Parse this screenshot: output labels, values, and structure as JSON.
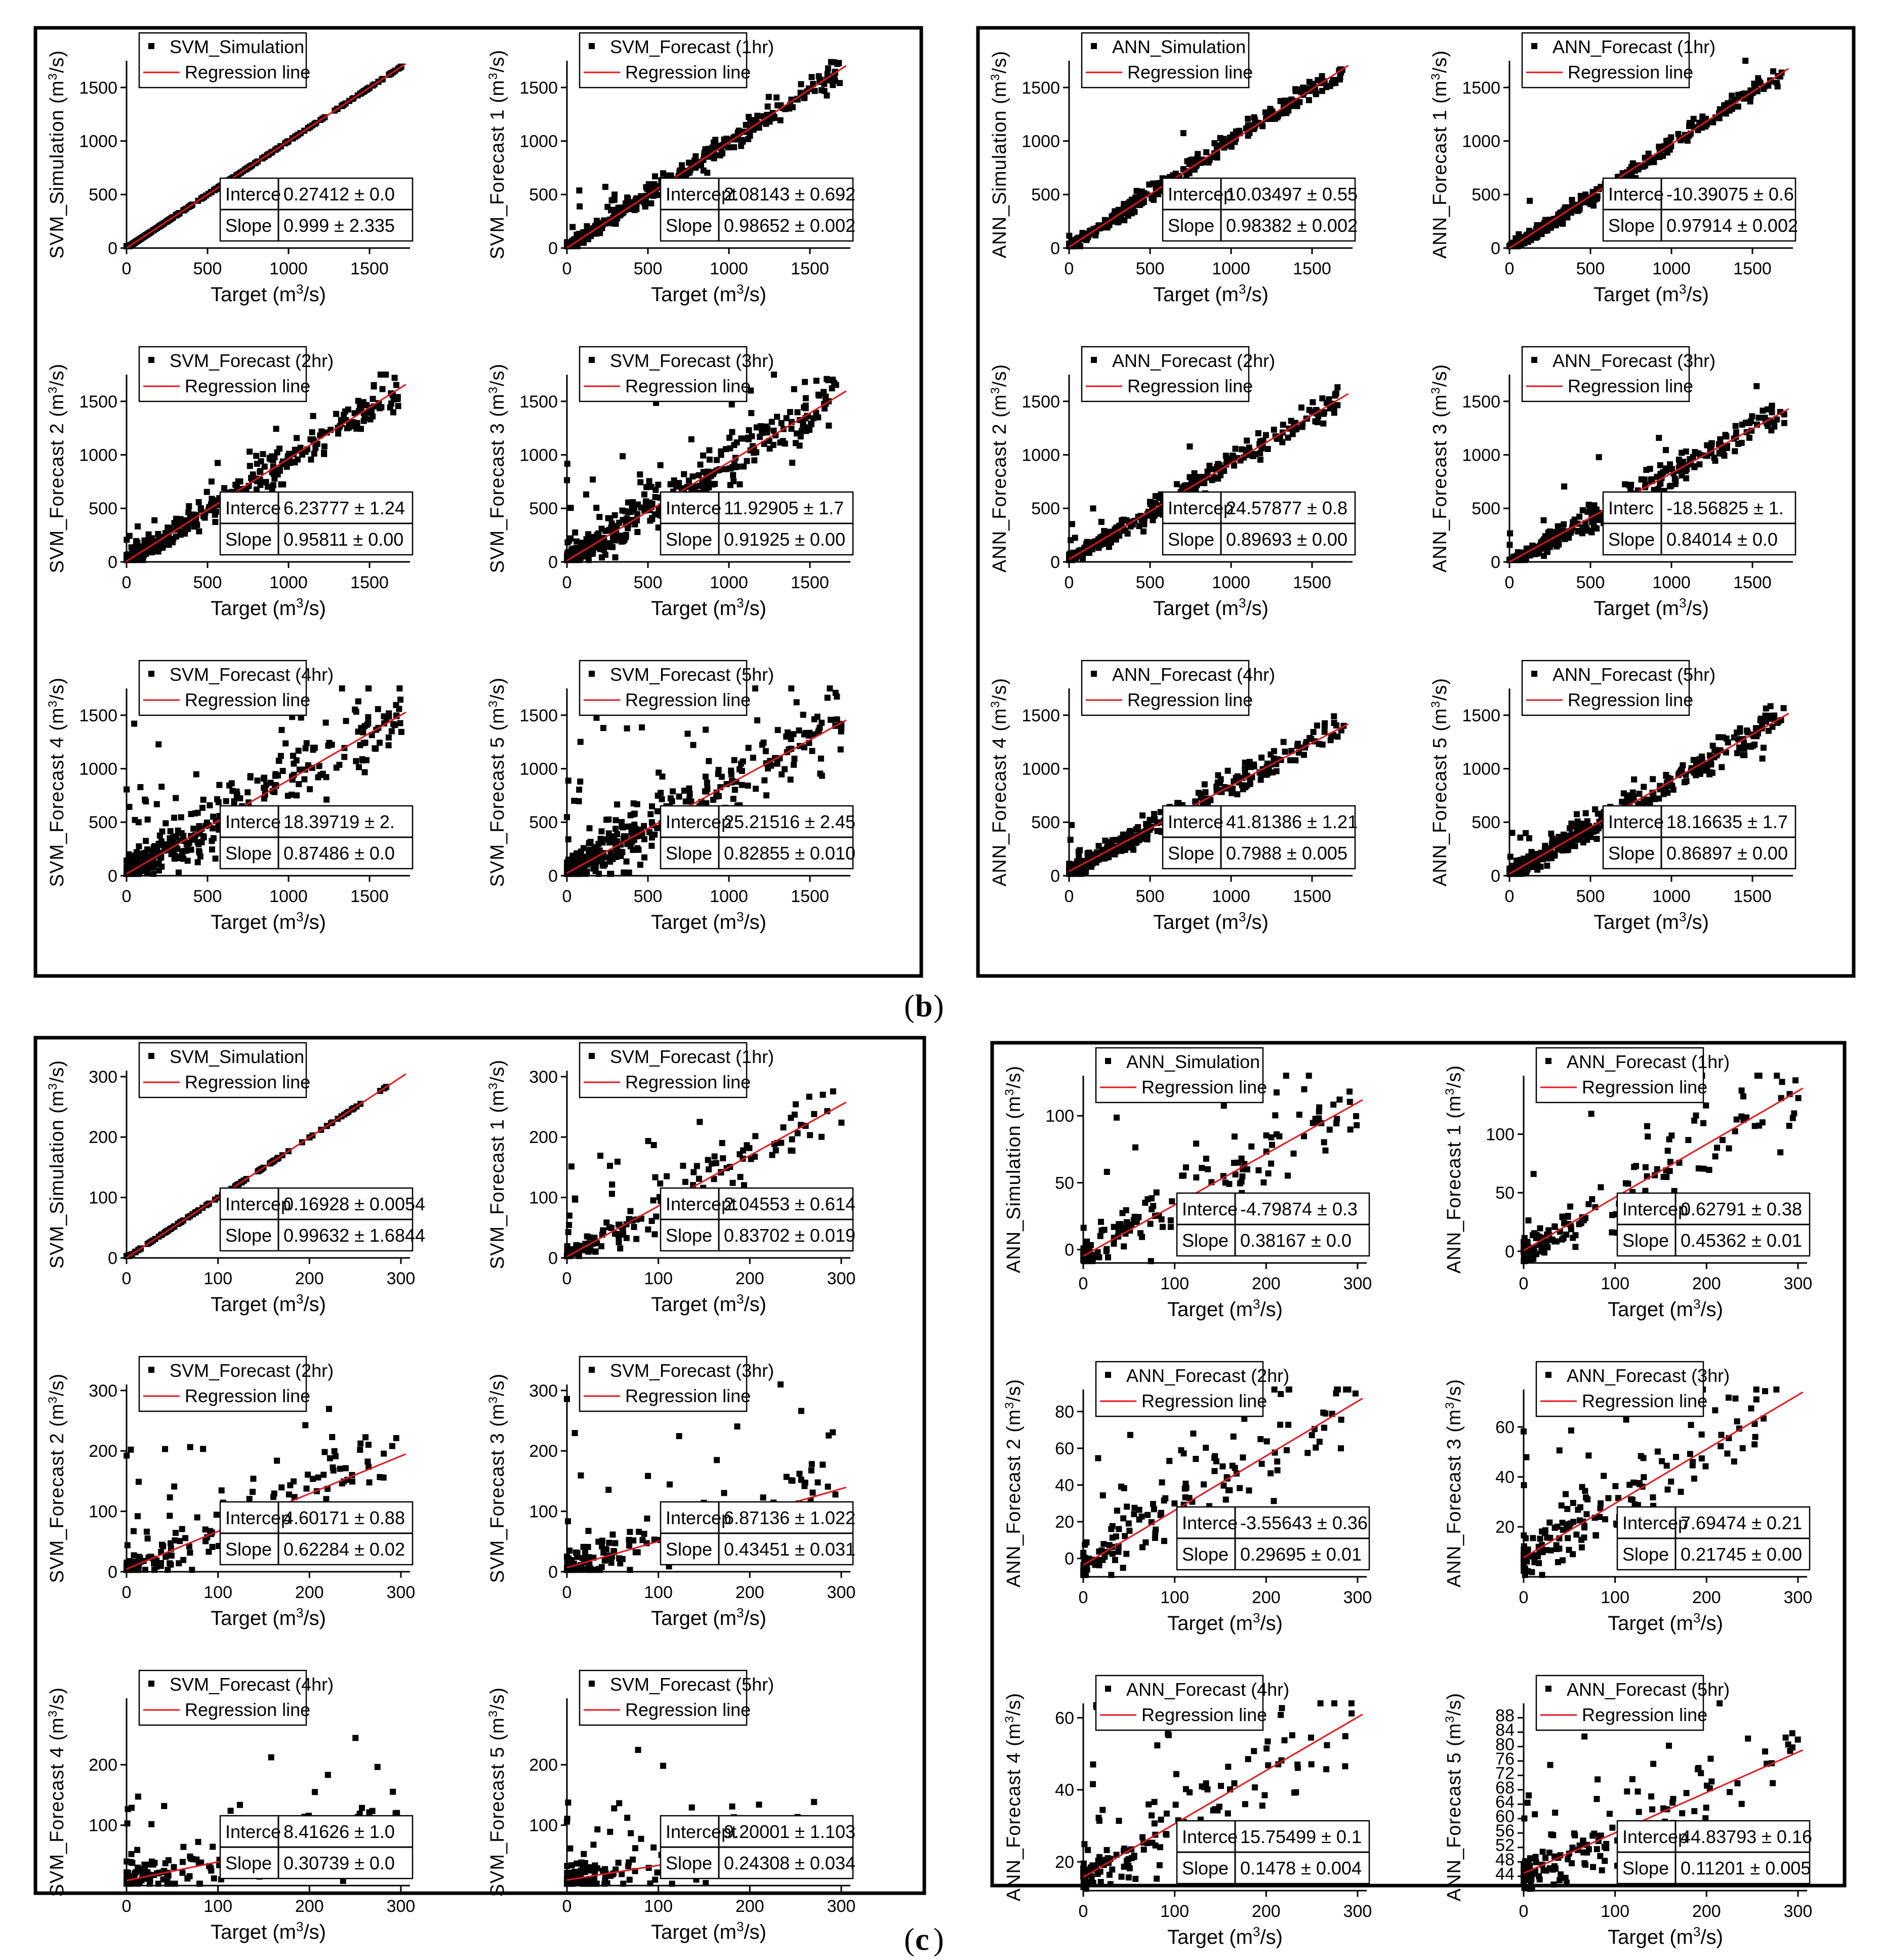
{
  "figure": {
    "captions": [
      "b",
      "c"
    ],
    "legend_regression_label": "Regression line",
    "stat_row_labels": {
      "intercept_long": "Intercept",
      "slope": "Slope"
    }
  },
  "chart_data": [
    {
      "type": "scatter",
      "id": "b-svm-sim",
      "section": "b",
      "group": "SVM",
      "series_name": "SVM_Simulation",
      "ylabel": "SVM_Simulation (m3/s)",
      "ylabel_parts": [
        "SVM_Simulation (m",
        "3",
        "/s)"
      ],
      "xlabel_parts": [
        "Target (m",
        "3",
        "/s)"
      ],
      "xlim": [
        0,
        1750
      ],
      "ylim": [
        0,
        1750
      ],
      "xticks": [
        0,
        500,
        1000,
        1500
      ],
      "yticks": [
        0,
        500,
        1000,
        1500
      ],
      "intercept_label": "Interce",
      "intercept": "0.27412 ± 0.0",
      "slope": "0.999 ± 2.335",
      "fit": {
        "a": 0.274,
        "b": 0.999
      },
      "noise": 0,
      "outlier_rate": 0,
      "n": 320
    },
    {
      "type": "scatter",
      "id": "b-svm-f1",
      "section": "b",
      "group": "SVM",
      "series_name": "SVM_Forecast (1hr)",
      "ylabel_parts": [
        "SVM_Forecast 1 (m",
        "3",
        "/s)"
      ],
      "xlabel_parts": [
        "Target (m",
        "3",
        "/s)"
      ],
      "xlim": [
        0,
        1750
      ],
      "ylim": [
        0,
        1750
      ],
      "xticks": [
        0,
        500,
        1000,
        1500
      ],
      "yticks": [
        0,
        500,
        1000,
        1500
      ],
      "intercept_label": "Intercept",
      "intercept": "2.08143 ± 0.692",
      "slope": "0.98652 ± 0.002",
      "fit": {
        "a": 2.08,
        "b": 0.987
      },
      "noise": 55,
      "outlier_rate": 0.04,
      "n": 420
    },
    {
      "type": "scatter",
      "id": "b-svm-f2",
      "section": "b",
      "group": "SVM",
      "series_name": "SVM_Forecast (2hr)",
      "ylabel_parts": [
        "SVM_Forecast 2 (m",
        "3",
        "/s)"
      ],
      "xlabel_parts": [
        "Target (m",
        "3",
        "/s)"
      ],
      "xlim": [
        0,
        1750
      ],
      "ylim": [
        0,
        1750
      ],
      "xticks": [
        0,
        500,
        1000,
        1500
      ],
      "yticks": [
        0,
        500,
        1000,
        1500
      ],
      "intercept_label": "Interce",
      "intercept": "6.23777 ± 1.24",
      "slope": "0.95811 ± 0.00",
      "fit": {
        "a": 6.24,
        "b": 0.958
      },
      "noise": 85,
      "outlier_rate": 0.06,
      "n": 420
    },
    {
      "type": "scatter",
      "id": "b-svm-f3",
      "section": "b",
      "group": "SVM",
      "series_name": "SVM_Forecast (3hr)",
      "ylabel_parts": [
        "SVM_Forecast 3 (m",
        "3",
        "/s)"
      ],
      "xlabel_parts": [
        "Target (m",
        "3",
        "/s)"
      ],
      "xlim": [
        0,
        1750
      ],
      "ylim": [
        0,
        1750
      ],
      "xticks": [
        0,
        500,
        1000,
        1500
      ],
      "yticks": [
        0,
        500,
        1000,
        1500
      ],
      "intercept_label": "Interce",
      "intercept": "11.92905 ± 1.7",
      "slope": "0.91925 ± 0.00",
      "fit": {
        "a": 11.93,
        "b": 0.919
      },
      "noise": 120,
      "outlier_rate": 0.08,
      "n": 420
    },
    {
      "type": "scatter",
      "id": "b-svm-f4",
      "section": "b",
      "group": "SVM",
      "series_name": "SVM_Forecast (4hr)",
      "ylabel_parts": [
        "SVM_Forecast 4 (m",
        "3",
        "/s)"
      ],
      "xlabel_parts": [
        "Target (m",
        "3",
        "/s)"
      ],
      "xlim": [
        0,
        1750
      ],
      "ylim": [
        0,
        1750
      ],
      "xticks": [
        0,
        500,
        1000,
        1500
      ],
      "yticks": [
        0,
        500,
        1000,
        1500
      ],
      "intercept_label": "Interce",
      "intercept": "18.39719 ± 2.",
      "slope": "0.87486 ± 0.0",
      "fit": {
        "a": 18.4,
        "b": 0.875
      },
      "noise": 150,
      "outlier_rate": 0.1,
      "n": 420
    },
    {
      "type": "scatter",
      "id": "b-svm-f5",
      "section": "b",
      "group": "SVM",
      "series_name": "SVM_Forecast (5hr)",
      "ylabel_parts": [
        "SVM_Forecast 5 (m",
        "3",
        "/s)"
      ],
      "xlabel_parts": [
        "Target (m",
        "3",
        "/s)"
      ],
      "xlim": [
        0,
        1750
      ],
      "ylim": [
        0,
        1750
      ],
      "xticks": [
        0,
        500,
        1000,
        1500
      ],
      "yticks": [
        0,
        500,
        1000,
        1500
      ],
      "intercept_label": "Intercep",
      "intercept": "25.21516 ± 2.45",
      "slope": "0.82855 ± 0.010",
      "fit": {
        "a": 25.2,
        "b": 0.829
      },
      "noise": 170,
      "outlier_rate": 0.11,
      "n": 420
    },
    {
      "type": "scatter",
      "id": "b-ann-sim",
      "section": "b",
      "group": "ANN",
      "series_name": "ANN_Simulation",
      "ylabel_parts": [
        "ANN_Simulation (m",
        "3",
        "/s)"
      ],
      "xlabel_parts": [
        "Target (m",
        "3",
        "/s)"
      ],
      "xlim": [
        0,
        1750
      ],
      "ylim": [
        0,
        1750
      ],
      "xticks": [
        0,
        500,
        1000,
        1500
      ],
      "yticks": [
        0,
        500,
        1000,
        1500
      ],
      "intercept_label": "Intercep",
      "intercept": "10.03497 ± 0.55",
      "slope": "0.98382 ± 0.002",
      "fit": {
        "a": 10.03,
        "b": 0.984
      },
      "noise": 45,
      "outlier_rate": 0.02,
      "n": 420
    },
    {
      "type": "scatter",
      "id": "b-ann-f1",
      "section": "b",
      "group": "ANN",
      "series_name": "ANN_Forecast (1hr)",
      "ylabel_parts": [
        "ANN_Forecast 1 (m",
        "3",
        "/s)"
      ],
      "xlabel_parts": [
        "Target (m",
        "3",
        "/s)"
      ],
      "xlim": [
        0,
        1750
      ],
      "ylim": [
        0,
        1750
      ],
      "xticks": [
        0,
        500,
        1000,
        1500
      ],
      "yticks": [
        0,
        500,
        1000,
        1500
      ],
      "intercept_label": "Interce",
      "intercept": "-10.39075 ± 0.6",
      "slope": "0.97914 ± 0.002",
      "fit": {
        "a": -10.39,
        "b": 0.979
      },
      "noise": 45,
      "outlier_rate": 0.02,
      "n": 420
    },
    {
      "type": "scatter",
      "id": "b-ann-f2",
      "section": "b",
      "group": "ANN",
      "series_name": "ANN_Forecast (2hr)",
      "ylabel_parts": [
        "ANN_Forecast 2 (m",
        "3",
        "/s)"
      ],
      "xlabel_parts": [
        "Target (m",
        "3",
        "/s)"
      ],
      "xlim": [
        0,
        1750
      ],
      "ylim": [
        0,
        1750
      ],
      "xticks": [
        0,
        500,
        1000,
        1500
      ],
      "yticks": [
        0,
        500,
        1000,
        1500
      ],
      "intercept_label": "Intercep",
      "intercept": "24.57877 ± 0.8",
      "slope": "0.89693 ± 0.00",
      "fit": {
        "a": 24.58,
        "b": 0.897
      },
      "noise": 50,
      "outlier_rate": 0.02,
      "n": 420
    },
    {
      "type": "scatter",
      "id": "b-ann-f3",
      "section": "b",
      "group": "ANN",
      "series_name": "ANN_Forecast (3hr)",
      "ylabel_parts": [
        "ANN_Forecast 3 (m",
        "3",
        "/s)"
      ],
      "xlabel_parts": [
        "Target (m",
        "3",
        "/s)"
      ],
      "xlim": [
        0,
        1750
      ],
      "ylim": [
        0,
        1750
      ],
      "xticks": [
        0,
        500,
        1000,
        1500
      ],
      "yticks": [
        0,
        500,
        1000,
        1500
      ],
      "intercept_label": "Interc",
      "intercept": "-18.56825 ± 1.",
      "slope": "0.84014 ± 0.0",
      "fit": {
        "a": -18.57,
        "b": 0.84
      },
      "noise": 70,
      "outlier_rate": 0.03,
      "n": 420
    },
    {
      "type": "scatter",
      "id": "b-ann-f4",
      "section": "b",
      "group": "ANN",
      "series_name": "ANN_Forecast (4hr)",
      "ylabel_parts": [
        "ANN_Forecast 4 (m",
        "3",
        "/s)"
      ],
      "xlabel_parts": [
        "Target (m",
        "3",
        "/s)"
      ],
      "xlim": [
        0,
        1750
      ],
      "ylim": [
        0,
        1750
      ],
      "xticks": [
        0,
        500,
        1000,
        1500
      ],
      "yticks": [
        0,
        500,
        1000,
        1500
      ],
      "intercept_label": "Interce",
      "intercept": "41.81386 ± 1.21",
      "slope": "0.7988 ± 0.005",
      "fit": {
        "a": 41.81,
        "b": 0.799
      },
      "noise": 70,
      "outlier_rate": 0.03,
      "n": 420
    },
    {
      "type": "scatter",
      "id": "b-ann-f5",
      "section": "b",
      "group": "ANN",
      "series_name": "ANN_Forecast (5hr)",
      "ylabel_parts": [
        "ANN_Forecast 5 (m",
        "3",
        "/s)"
      ],
      "xlabel_parts": [
        "Target (m",
        "3",
        "/s)"
      ],
      "xlim": [
        0,
        1750
      ],
      "ylim": [
        0,
        1750
      ],
      "xticks": [
        0,
        500,
        1000,
        1500
      ],
      "yticks": [
        0,
        500,
        1000,
        1500
      ],
      "intercept_label": "Interce",
      "intercept": "18.16635 ± 1.7",
      "slope": "0.86897 ± 0.00",
      "fit": {
        "a": 18.17,
        "b": 0.869
      },
      "noise": 80,
      "outlier_rate": 0.03,
      "n": 420
    },
    {
      "type": "scatter",
      "id": "c-svm-sim",
      "section": "c",
      "group": "SVM",
      "series_name": "SVM_Simulation",
      "ylabel_parts": [
        "SVM_Simulation (m",
        "3",
        "/s)"
      ],
      "xlabel_parts": [
        "Target (m",
        "3",
        "/s)"
      ],
      "xlim": [
        0,
        310
      ],
      "ylim": [
        0,
        310
      ],
      "xticks": [
        0,
        100,
        200,
        300
      ],
      "yticks": [
        0,
        100,
        200,
        300
      ],
      "intercept_label": "Intercep",
      "intercept": "0.16928 ± 0.0054",
      "slope": "0.99632 ± 1.6844",
      "fit": {
        "a": 0.17,
        "b": 0.996
      },
      "noise": 0,
      "outlier_rate": 0,
      "n": 130
    },
    {
      "type": "scatter",
      "id": "c-svm-f1",
      "section": "c",
      "group": "SVM",
      "series_name": "SVM_Forecast (1hr)",
      "ylabel_parts": [
        "SVM_Forecast 1 (m",
        "3",
        "/s)"
      ],
      "xlabel_parts": [
        "Target (m",
        "3",
        "/s)"
      ],
      "xlim": [
        0,
        310
      ],
      "ylim": [
        0,
        310
      ],
      "xticks": [
        0,
        100,
        200,
        300
      ],
      "yticks": [
        0,
        100,
        200,
        300
      ],
      "intercept_label": "Intercept",
      "intercept": "2.04553 ± 0.614",
      "slope": "0.83702 ± 0.019",
      "fit": {
        "a": 2.05,
        "b": 0.837
      },
      "noise": 25,
      "outlier_rate": 0.12,
      "n": 170
    },
    {
      "type": "scatter",
      "id": "c-svm-f2",
      "section": "c",
      "group": "SVM",
      "series_name": "SVM_Forecast (2hr)",
      "ylabel_parts": [
        "SVM_Forecast 2 (m",
        "3",
        "/s)"
      ],
      "xlabel_parts": [
        "Target (m",
        "3",
        "/s)"
      ],
      "xlim": [
        0,
        310
      ],
      "ylim": [
        0,
        310
      ],
      "xticks": [
        0,
        100,
        200,
        300
      ],
      "yticks": [
        0,
        100,
        200,
        300
      ],
      "intercept_label": "Intercep",
      "intercept": "4.60171 ± 0.88",
      "slope": "0.62284 ± 0.02",
      "fit": {
        "a": 4.6,
        "b": 0.623
      },
      "noise": 28,
      "outlier_rate": 0.14,
      "n": 170
    },
    {
      "type": "scatter",
      "id": "c-svm-f3",
      "section": "c",
      "group": "SVM",
      "series_name": "SVM_Forecast (3hr)",
      "ylabel_parts": [
        "SVM_Forecast 3 (m",
        "3",
        "/s)"
      ],
      "xlabel_parts": [
        "Target (m",
        "3",
        "/s)"
      ],
      "xlim": [
        0,
        310
      ],
      "ylim": [
        0,
        310
      ],
      "xticks": [
        0,
        100,
        200,
        300
      ],
      "yticks": [
        0,
        100,
        200,
        300
      ],
      "intercept_label": "Intercep",
      "intercept": "6.87136 ± 1.022",
      "slope": "0.43451 ± 0.031",
      "fit": {
        "a": 6.87,
        "b": 0.435
      },
      "noise": 30,
      "outlier_rate": 0.16,
      "n": 170
    },
    {
      "type": "scatter",
      "id": "c-svm-f4",
      "section": "c",
      "group": "SVM",
      "series_name": "SVM_Forecast (4hr)",
      "ylabel_parts": [
        "SVM_Forecast 4 (m",
        "3",
        "/s)"
      ],
      "xlabel_parts": [
        "Target (m",
        "3",
        "/s)"
      ],
      "xlim": [
        0,
        310
      ],
      "ylim": [
        0,
        310
      ],
      "xticks": [
        0,
        100,
        200,
        300
      ],
      "yticks": [
        100,
        200
      ],
      "intercept_label": "Interce",
      "intercept": "8.41626 ± 1.0",
      "slope": "0.30739 ± 0.0",
      "fit": {
        "a": 8.42,
        "b": 0.307
      },
      "noise": 25,
      "outlier_rate": 0.16,
      "n": 170
    },
    {
      "type": "scatter",
      "id": "c-svm-f5",
      "section": "c",
      "group": "SVM",
      "series_name": "SVM_Forecast (5hr)",
      "ylabel_parts": [
        "SVM_Forecast 5 (m",
        "3",
        "/s)"
      ],
      "xlabel_parts": [
        "Target (m",
        "3",
        "/s)"
      ],
      "xlim": [
        0,
        310
      ],
      "ylim": [
        0,
        310
      ],
      "xticks": [
        0,
        100,
        200,
        300
      ],
      "yticks": [
        100,
        200
      ],
      "intercept_label": "Intercept",
      "intercept": "9.20001 ± 1.103",
      "slope": "0.24308 ± 0.034",
      "fit": {
        "a": 9.2,
        "b": 0.243
      },
      "noise": 25,
      "outlier_rate": 0.16,
      "n": 170
    },
    {
      "type": "scatter",
      "id": "c-ann-sim",
      "section": "c",
      "group": "ANN",
      "series_name": "ANN_Simulation",
      "ylabel_parts": [
        "ANN_Simulation (m",
        "3",
        "/s)"
      ],
      "xlabel_parts": [
        "Target (m",
        "3",
        "/s)"
      ],
      "xlim": [
        0,
        310
      ],
      "ylim": [
        -10,
        130
      ],
      "xticks": [
        0,
        100,
        200,
        300
      ],
      "yticks": [
        0,
        50,
        100
      ],
      "intercept_label": "Interce",
      "intercept": "-4.79874 ± 0.3",
      "slope": "0.38167 ± 0.0",
      "fit": {
        "a": -4.8,
        "b": 0.382
      },
      "noise": 14,
      "outlier_rate": 0.12,
      "n": 160
    },
    {
      "type": "scatter",
      "id": "c-ann-f1",
      "section": "c",
      "group": "ANN",
      "series_name": "ANN_Forecast (1hr)",
      "ylabel_parts": [
        "ANN_Forecast 1 (m",
        "3",
        "/s)"
      ],
      "xlabel_parts": [
        "Target (m",
        "3",
        "/s)"
      ],
      "xlim": [
        0,
        310
      ],
      "ylim": [
        -10,
        150
      ],
      "xticks": [
        0,
        100,
        200,
        300
      ],
      "yticks": [
        0,
        50,
        100
      ],
      "intercept_label": "Intercep",
      "intercept": "0.62791 ± 0.38",
      "slope": "0.45362 ± 0.01",
      "fit": {
        "a": 0.63,
        "b": 0.454
      },
      "noise": 16,
      "outlier_rate": 0.12,
      "n": 160
    },
    {
      "type": "scatter",
      "id": "c-ann-f2",
      "section": "c",
      "group": "ANN",
      "series_name": "ANN_Forecast (2hr)",
      "ylabel_parts": [
        "ANN_Forecast 2 (m",
        "3",
        "/s)"
      ],
      "xlabel_parts": [
        "Target (m",
        "3",
        "/s)"
      ],
      "xlim": [
        0,
        310
      ],
      "ylim": [
        -10,
        92
      ],
      "xticks": [
        0,
        100,
        200,
        300
      ],
      "yticks": [
        0,
        20,
        40,
        60,
        80
      ],
      "intercept_label": "Interce",
      "intercept": "-3.55643 ± 0.36",
      "slope": "0.29695 ± 0.01",
      "fit": {
        "a": -3.56,
        "b": 0.297
      },
      "noise": 12,
      "outlier_rate": 0.12,
      "n": 160
    },
    {
      "type": "scatter",
      "id": "c-ann-f3",
      "section": "c",
      "group": "ANN",
      "series_name": "ANN_Forecast (3hr)",
      "ylabel_parts": [
        "ANN_Forecast 3 (m",
        "3",
        "/s)"
      ],
      "xlabel_parts": [
        "Target (m",
        "3",
        "/s)"
      ],
      "xlim": [
        0,
        310
      ],
      "ylim": [
        0,
        75
      ],
      "xticks": [
        0,
        100,
        200,
        300
      ],
      "yticks": [
        20,
        40,
        60
      ],
      "intercept_label": "Intercep",
      "intercept": "7.69474 ± 0.21",
      "slope": "0.21745 ± 0.00",
      "fit": {
        "a": 7.69,
        "b": 0.217
      },
      "noise": 9,
      "outlier_rate": 0.12,
      "n": 160
    },
    {
      "type": "scatter",
      "id": "c-ann-f4",
      "section": "c",
      "group": "ANN",
      "series_name": "ANN_Forecast (4hr)",
      "ylabel_parts": [
        "ANN_Forecast 4 (m",
        "3",
        "/s)"
      ],
      "xlabel_parts": [
        "Target (m",
        "3",
        "/s)"
      ],
      "xlim": [
        0,
        310
      ],
      "ylim": [
        12,
        64
      ],
      "xticks": [
        0,
        100,
        200,
        300
      ],
      "yticks": [
        20,
        40,
        60
      ],
      "intercept_label": "Interce",
      "intercept": "15.75499 ± 0.1",
      "slope": "0.1478 ± 0.004",
      "fit": {
        "a": 15.75,
        "b": 0.148
      },
      "noise": 6,
      "outlier_rate": 0.12,
      "n": 160
    },
    {
      "type": "scatter",
      "id": "c-ann-f5",
      "section": "c",
      "group": "ANN",
      "series_name": "ANN_Forecast (5hr)",
      "ylabel_parts": [
        "ANN_Forecast 5 (m",
        "3",
        "/s)"
      ],
      "xlabel_parts": [
        "Target (m",
        "3",
        "/s)"
      ],
      "xlim": [
        0,
        310
      ],
      "ylim": [
        40,
        92
      ],
      "xticks": [
        0,
        100,
        200,
        300
      ],
      "yticks": [
        44,
        48,
        52,
        56,
        60,
        64,
        68,
        72,
        76,
        80,
        84,
        88
      ],
      "intercept_label": "Intercep",
      "intercept": "44.83793 ± 0.16",
      "slope": "0.11201 ± 0.005",
      "fit": {
        "a": 44.84,
        "b": 0.112
      },
      "noise": 6,
      "outlier_rate": 0.12,
      "n": 160
    }
  ]
}
